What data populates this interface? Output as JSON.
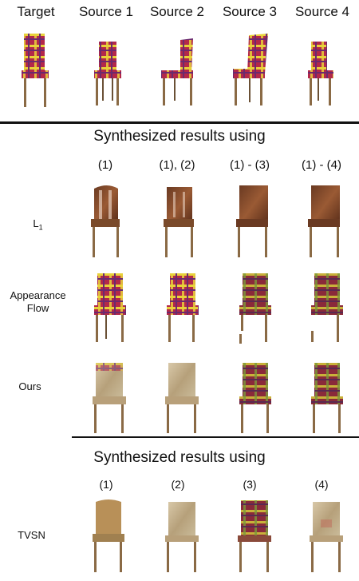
{
  "header": {
    "labels": [
      "Target",
      "Source 1",
      "Source 2",
      "Source 3",
      "Source 4"
    ]
  },
  "section1": {
    "title": "Synthesized results using",
    "columns": [
      "(1)",
      "(1), (2)",
      "(1) - (3)",
      "(1) - (4)"
    ],
    "rows": [
      {
        "label": "L",
        "subscript": "1"
      },
      {
        "label_line1": "Appearance",
        "label_line2": "Flow"
      },
      {
        "label": "Ours"
      }
    ]
  },
  "section2": {
    "title": "Synthesized results using",
    "columns": [
      "(1)",
      "(2)",
      "(3)",
      "(4)"
    ],
    "rows": [
      {
        "label": "TVSN"
      }
    ]
  },
  "colors": {
    "plaid_red": "#b3284a",
    "plaid_yellow": "#e8d23a",
    "plaid_purple": "#6b2a6e",
    "leg_brown": "#8a6a45",
    "blur_brown": "#8a4a2a",
    "pale_beige": "#c9b89a"
  }
}
